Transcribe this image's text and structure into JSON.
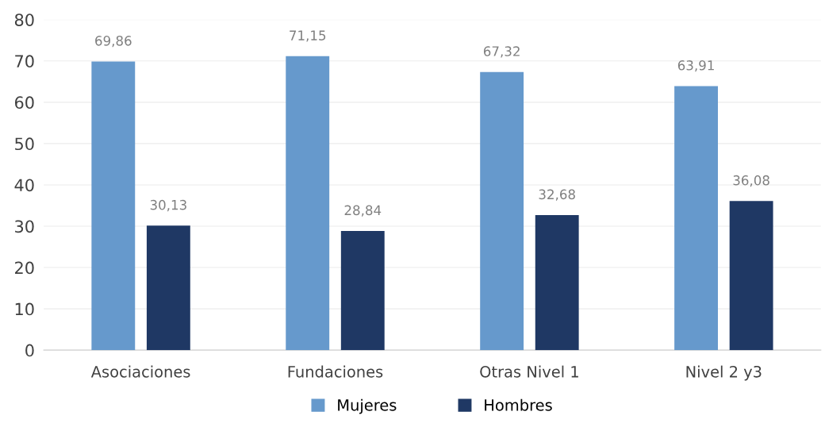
{
  "chart_data": {
    "type": "bar",
    "categories": [
      "Asociaciones",
      "Fundaciones",
      "Otras Nivel 1",
      "Nivel 2 y3"
    ],
    "series": [
      {
        "name": "Mujeres",
        "color": "#6699cc",
        "values": [
          69.86,
          71.15,
          67.32,
          63.91
        ],
        "value_labels": [
          "69,86",
          "71,15",
          "67,32",
          "63,91"
        ]
      },
      {
        "name": "Hombres",
        "color": "#1f3864",
        "values": [
          30.13,
          28.84,
          32.68,
          36.08
        ],
        "value_labels": [
          "30,13",
          "28,84",
          "32,68",
          "36,08"
        ]
      }
    ],
    "ylim": [
      0,
      80
    ],
    "yticks": [
      0,
      10,
      20,
      30,
      40,
      50,
      60,
      70,
      80
    ],
    "grid": "y",
    "legend": "bottom"
  }
}
